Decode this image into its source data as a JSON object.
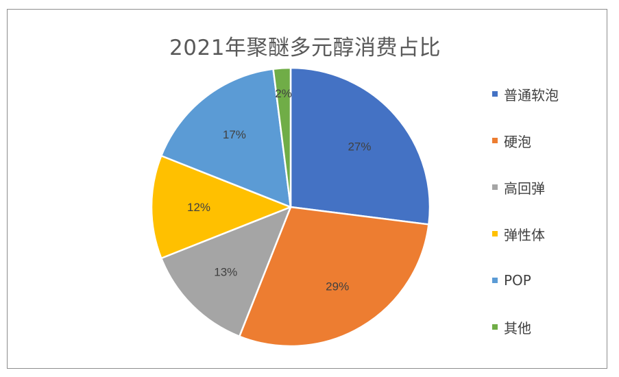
{
  "chart_data": {
    "type": "pie",
    "title": "2021年聚醚多元醇消费占比",
    "categories": [
      "普通软泡",
      "硬泡",
      "高回弹",
      "弹性体",
      "POP",
      "其他"
    ],
    "values": [
      27,
      29,
      13,
      12,
      17,
      2
    ],
    "labels": [
      "27%",
      "29%",
      "13%",
      "12%",
      "17%",
      "2%"
    ],
    "colors": [
      "#4472C4",
      "#ED7D31",
      "#A5A5A5",
      "#FFC000",
      "#5B9BD5",
      "#70AD47"
    ],
    "legend": "right"
  }
}
